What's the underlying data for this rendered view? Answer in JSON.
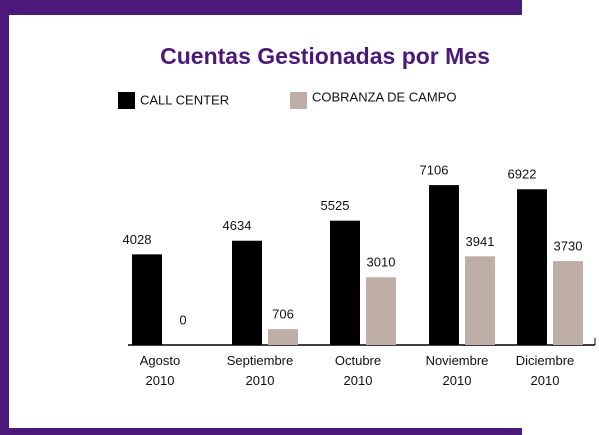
{
  "chart_data": {
    "type": "bar",
    "title": "Cuentas Gestionadas por Mes",
    "categories": [
      "Agosto 2010",
      "Septiembre 2010",
      "Octubre 2010",
      "Noviembre 2010",
      "Diciembre 2010"
    ],
    "series": [
      {
        "name": "CALL CENTER",
        "color": "#000000",
        "values": [
          4028,
          4634,
          5525,
          7106,
          6922
        ]
      },
      {
        "name": "COBRANZA DE CAMPO",
        "color": "#bfaea6",
        "values": [
          0,
          706,
          3010,
          3941,
          3730
        ]
      }
    ],
    "ylim": [
      0,
      8000
    ]
  }
}
